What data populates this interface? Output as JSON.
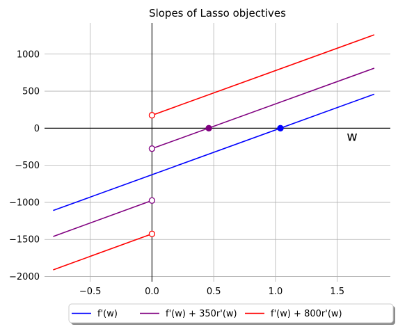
{
  "chart_data": {
    "type": "line",
    "title": "Slopes of Lasso objectives",
    "xlabel": "w",
    "ylabel": "",
    "xlim": [
      -0.87,
      1.93
    ],
    "ylim": [
      -2070,
      1420
    ],
    "xticks": [
      -0.5,
      0.0,
      0.5,
      1.0,
      1.5
    ],
    "xtick_labels": [
      "−0.5",
      "0.0",
      "0.5",
      "1.0",
      "1.5"
    ],
    "yticks": [
      -2000,
      -1500,
      -1000,
      -500,
      0,
      500,
      1000
    ],
    "ytick_labels": [
      "−2000",
      "−1500",
      "−1000",
      "−500",
      "0",
      "500",
      "1000"
    ],
    "grid": true,
    "legend_position": "bottom-center",
    "series": [
      {
        "name": "f'(w)",
        "color": "#0000ff",
        "segments": [
          [
            [
              -0.8,
              -1110
            ],
            [
              1.8,
              460
            ]
          ]
        ],
        "open_points": [],
        "filled_points": [
          [
            1.04,
            0
          ]
        ]
      },
      {
        "name": "f'(w) + 350r'(w)",
        "color": "#800080",
        "segments": [
          [
            [
              -0.8,
              -1460
            ],
            [
              0.0,
              -975
            ]
          ],
          [
            [
              0.0,
              -275
            ],
            [
              1.8,
              810
            ]
          ]
        ],
        "open_points": [
          [
            0.0,
            -975
          ],
          [
            0.0,
            -275
          ]
        ],
        "filled_points": [
          [
            0.46,
            0
          ]
        ]
      },
      {
        "name": "f'(w) + 800r'(w)",
        "color": "#ff0000",
        "segments": [
          [
            [
              -0.8,
              -1910
            ],
            [
              0.0,
              -1425
            ]
          ],
          [
            [
              0.0,
              175
            ],
            [
              1.8,
              1260
            ]
          ]
        ],
        "open_points": [
          [
            0.0,
            -1425
          ],
          [
            0.0,
            175
          ]
        ],
        "filled_points": []
      }
    ]
  }
}
